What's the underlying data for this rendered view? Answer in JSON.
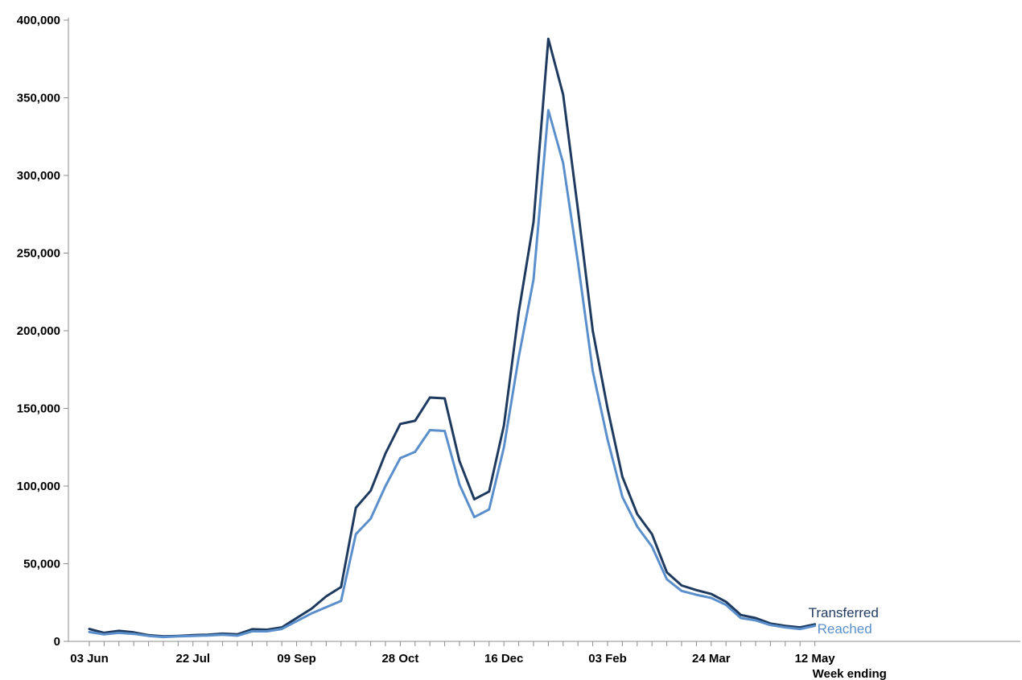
{
  "chart_data": {
    "type": "line",
    "title": "",
    "xlabel": "Week ending",
    "ylabel": "",
    "ylim": [
      0,
      400000
    ],
    "yticks": [
      0,
      50000,
      100000,
      150000,
      200000,
      250000,
      300000,
      350000,
      400000
    ],
    "ytick_labels": [
      "0",
      "50,000",
      "100,000",
      "150,000",
      "200,000",
      "250,000",
      "300,000",
      "350,000",
      "400,000"
    ],
    "xtick_labels": [
      "03 Jun",
      "22 Jul",
      "09 Sep",
      "28 Oct",
      "16 Dec",
      "03 Feb",
      "24 Mar",
      "12 May"
    ],
    "x": [
      "03 Jun",
      "10 Jun",
      "17 Jun",
      "24 Jun",
      "01 Jul",
      "08 Jul",
      "15 Jul",
      "22 Jul",
      "29 Jul",
      "05 Aug",
      "12 Aug",
      "19 Aug",
      "26 Aug",
      "02 Sep",
      "09 Sep",
      "16 Sep",
      "23 Sep",
      "30 Sep",
      "07 Oct",
      "14 Oct",
      "21 Oct",
      "28 Oct",
      "04 Nov",
      "11 Nov",
      "18 Nov",
      "25 Nov",
      "02 Dec",
      "09 Dec",
      "16 Dec",
      "23 Dec",
      "30 Dec",
      "06 Jan",
      "13 Jan",
      "20 Jan",
      "27 Jan",
      "03 Feb",
      "10 Feb",
      "17 Feb",
      "24 Feb",
      "03 Mar",
      "10 Mar",
      "17 Mar",
      "24 Mar",
      "31 Mar",
      "07 Apr",
      "14 Apr",
      "21 Apr",
      "28 Apr",
      "05 May",
      "12 May"
    ],
    "grid": false,
    "legend": "inline labels at line ends",
    "series": [
      {
        "name": "Transferred",
        "color": "#1f3a5f",
        "values": [
          8000,
          5500,
          6800,
          5800,
          4000,
          3200,
          3500,
          4000,
          4300,
          5000,
          4500,
          7800,
          7500,
          9000,
          15000,
          21000,
          29000,
          35000,
          86000,
          97000,
          121000,
          140000,
          142000,
          157000,
          156500,
          116000,
          91500,
          96500,
          139000,
          212000,
          270000,
          388000,
          352000,
          278000,
          200000,
          150000,
          106000,
          82000,
          69000,
          44500,
          36000,
          33000,
          30500,
          25500,
          17000,
          15000,
          11500,
          10000,
          9000,
          11000
        ]
      },
      {
        "name": "Reached",
        "color": "#5b8fcb",
        "values": [
          6000,
          4500,
          5500,
          4800,
          3500,
          2800,
          3200,
          3500,
          3800,
          4300,
          3700,
          6500,
          6500,
          8000,
          13000,
          18000,
          22000,
          26000,
          69000,
          79000,
          100000,
          118000,
          122000,
          136000,
          135500,
          101000,
          80000,
          85000,
          125000,
          183000,
          233000,
          342000,
          308000,
          244000,
          174000,
          130000,
          93000,
          74000,
          61000,
          40000,
          32500,
          30000,
          28000,
          23500,
          15000,
          13500,
          10500,
          9000,
          8000,
          10000
        ]
      }
    ]
  }
}
